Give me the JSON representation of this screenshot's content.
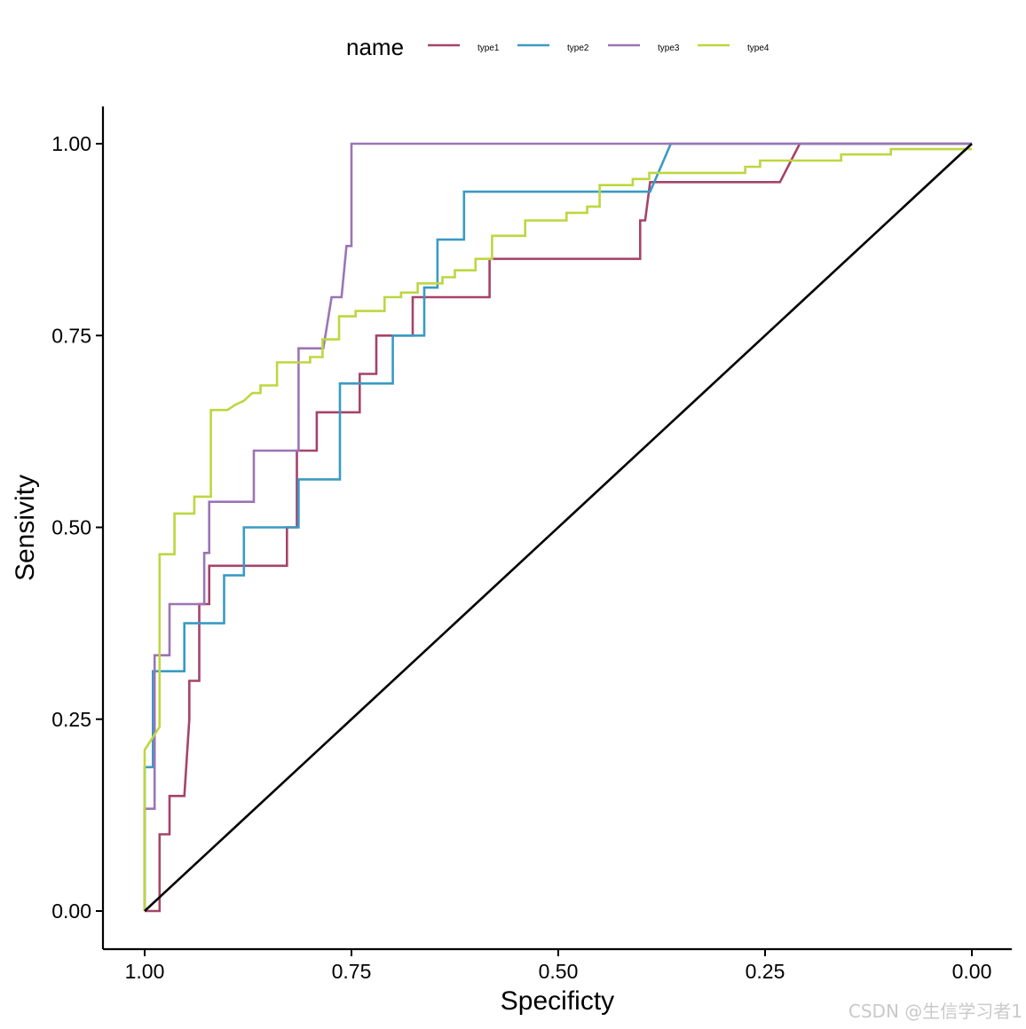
{
  "chart_data": {
    "type": "line",
    "title": "",
    "xlabel": "Specificty",
    "ylabel": "Sensivity",
    "xlim": [
      1.0,
      0.0
    ],
    "ylim": [
      0.0,
      1.0
    ],
    "x_reversed": true,
    "x_ticks": [
      1.0,
      0.75,
      0.5,
      0.25,
      0.0
    ],
    "x_tick_labels": [
      "1.00",
      "0.75",
      "0.50",
      "0.25",
      "0.00"
    ],
    "y_ticks": [
      0.0,
      0.25,
      0.5,
      0.75,
      1.0
    ],
    "y_tick_labels": [
      "0.00",
      "0.25",
      "0.50",
      "0.75",
      "1.00"
    ],
    "grid": false,
    "legend": {
      "title": "name",
      "position": "top"
    },
    "reference_line": {
      "from": [
        1.0,
        0.0
      ],
      "to": [
        0.0,
        1.0
      ],
      "color": "#000000"
    },
    "series": [
      {
        "name": "type1",
        "color": "#A6436A",
        "points": [
          [
            1.0,
            0.0
          ],
          [
            0.982,
            0.0
          ],
          [
            0.982,
            0.1
          ],
          [
            0.97,
            0.1
          ],
          [
            0.97,
            0.15
          ],
          [
            0.952,
            0.15
          ],
          [
            0.946,
            0.25
          ],
          [
            0.946,
            0.3
          ],
          [
            0.934,
            0.3
          ],
          [
            0.934,
            0.4
          ],
          [
            0.922,
            0.4
          ],
          [
            0.922,
            0.45
          ],
          [
            0.828,
            0.45
          ],
          [
            0.828,
            0.5
          ],
          [
            0.816,
            0.5
          ],
          [
            0.816,
            0.6
          ],
          [
            0.792,
            0.6
          ],
          [
            0.792,
            0.65
          ],
          [
            0.74,
            0.65
          ],
          [
            0.74,
            0.7
          ],
          [
            0.72,
            0.7
          ],
          [
            0.72,
            0.75
          ],
          [
            0.676,
            0.75
          ],
          [
            0.676,
            0.8
          ],
          [
            0.583,
            0.8
          ],
          [
            0.583,
            0.85
          ],
          [
            0.401,
            0.85
          ],
          [
            0.401,
            0.9
          ],
          [
            0.395,
            0.9
          ],
          [
            0.389,
            0.95
          ],
          [
            0.232,
            0.95
          ],
          [
            0.208,
            1.0
          ],
          [
            0.0,
            1.0
          ]
        ]
      },
      {
        "name": "type2",
        "color": "#3A9AC4",
        "points": [
          [
            1.0,
            0.0
          ],
          [
            1.0,
            0.1875
          ],
          [
            0.99,
            0.1875
          ],
          [
            0.99,
            0.3125
          ],
          [
            0.952,
            0.3125
          ],
          [
            0.952,
            0.375
          ],
          [
            0.904,
            0.375
          ],
          [
            0.904,
            0.4375
          ],
          [
            0.88,
            0.4375
          ],
          [
            0.88,
            0.5
          ],
          [
            0.814,
            0.5
          ],
          [
            0.814,
            0.5625
          ],
          [
            0.764,
            0.5625
          ],
          [
            0.764,
            0.6875
          ],
          [
            0.7,
            0.6875
          ],
          [
            0.7,
            0.75
          ],
          [
            0.662,
            0.75
          ],
          [
            0.662,
            0.8125
          ],
          [
            0.646,
            0.8125
          ],
          [
            0.646,
            0.875
          ],
          [
            0.614,
            0.875
          ],
          [
            0.614,
            0.9375
          ],
          [
            0.389,
            0.9375
          ],
          [
            0.364,
            1.0
          ],
          [
            0.0,
            1.0
          ]
        ]
      },
      {
        "name": "type3",
        "color": "#9C74B4",
        "points": [
          [
            1.0,
            0.0
          ],
          [
            1.0,
            0.1333
          ],
          [
            0.988,
            0.1333
          ],
          [
            0.988,
            0.3333
          ],
          [
            0.97,
            0.3333
          ],
          [
            0.97,
            0.4
          ],
          [
            0.928,
            0.4
          ],
          [
            0.928,
            0.4667
          ],
          [
            0.922,
            0.4667
          ],
          [
            0.922,
            0.5333
          ],
          [
            0.868,
            0.5333
          ],
          [
            0.868,
            0.6
          ],
          [
            0.814,
            0.6
          ],
          [
            0.814,
            0.7333
          ],
          [
            0.784,
            0.7333
          ],
          [
            0.774,
            0.8
          ],
          [
            0.762,
            0.8
          ],
          [
            0.756,
            0.8667
          ],
          [
            0.75,
            0.8667
          ],
          [
            0.75,
            1.0
          ],
          [
            0.0,
            1.0
          ]
        ]
      },
      {
        "name": "type4",
        "color": "#BCD73F",
        "points": [
          [
            1.0,
            0.0
          ],
          [
            1.0,
            0.21
          ],
          [
            0.982,
            0.24
          ],
          [
            0.982,
            0.465
          ],
          [
            0.964,
            0.465
          ],
          [
            0.964,
            0.518
          ],
          [
            0.94,
            0.518
          ],
          [
            0.94,
            0.54
          ],
          [
            0.92,
            0.54
          ],
          [
            0.92,
            0.653
          ],
          [
            0.9,
            0.653
          ],
          [
            0.89,
            0.66
          ],
          [
            0.88,
            0.665
          ],
          [
            0.87,
            0.675
          ],
          [
            0.86,
            0.675
          ],
          [
            0.86,
            0.685
          ],
          [
            0.84,
            0.685
          ],
          [
            0.84,
            0.715
          ],
          [
            0.8,
            0.715
          ],
          [
            0.8,
            0.722
          ],
          [
            0.785,
            0.722
          ],
          [
            0.785,
            0.745
          ],
          [
            0.765,
            0.745
          ],
          [
            0.765,
            0.775
          ],
          [
            0.745,
            0.775
          ],
          [
            0.745,
            0.782
          ],
          [
            0.71,
            0.782
          ],
          [
            0.71,
            0.8
          ],
          [
            0.69,
            0.8
          ],
          [
            0.69,
            0.806
          ],
          [
            0.67,
            0.806
          ],
          [
            0.67,
            0.818
          ],
          [
            0.64,
            0.818
          ],
          [
            0.64,
            0.826
          ],
          [
            0.625,
            0.826
          ],
          [
            0.625,
            0.835
          ],
          [
            0.6,
            0.835
          ],
          [
            0.6,
            0.85
          ],
          [
            0.58,
            0.85
          ],
          [
            0.58,
            0.88
          ],
          [
            0.54,
            0.88
          ],
          [
            0.54,
            0.9
          ],
          [
            0.49,
            0.9
          ],
          [
            0.49,
            0.91
          ],
          [
            0.465,
            0.91
          ],
          [
            0.465,
            0.918
          ],
          [
            0.45,
            0.918
          ],
          [
            0.45,
            0.946
          ],
          [
            0.41,
            0.946
          ],
          [
            0.41,
            0.954
          ],
          [
            0.39,
            0.954
          ],
          [
            0.39,
            0.962
          ],
          [
            0.274,
            0.962
          ],
          [
            0.274,
            0.97
          ],
          [
            0.256,
            0.97
          ],
          [
            0.256,
            0.978
          ],
          [
            0.158,
            0.978
          ],
          [
            0.158,
            0.986
          ],
          [
            0.098,
            0.986
          ],
          [
            0.098,
            0.993
          ],
          [
            0.0,
            0.993
          ]
        ]
      }
    ]
  },
  "watermark": "CSDN @生信学习者1"
}
